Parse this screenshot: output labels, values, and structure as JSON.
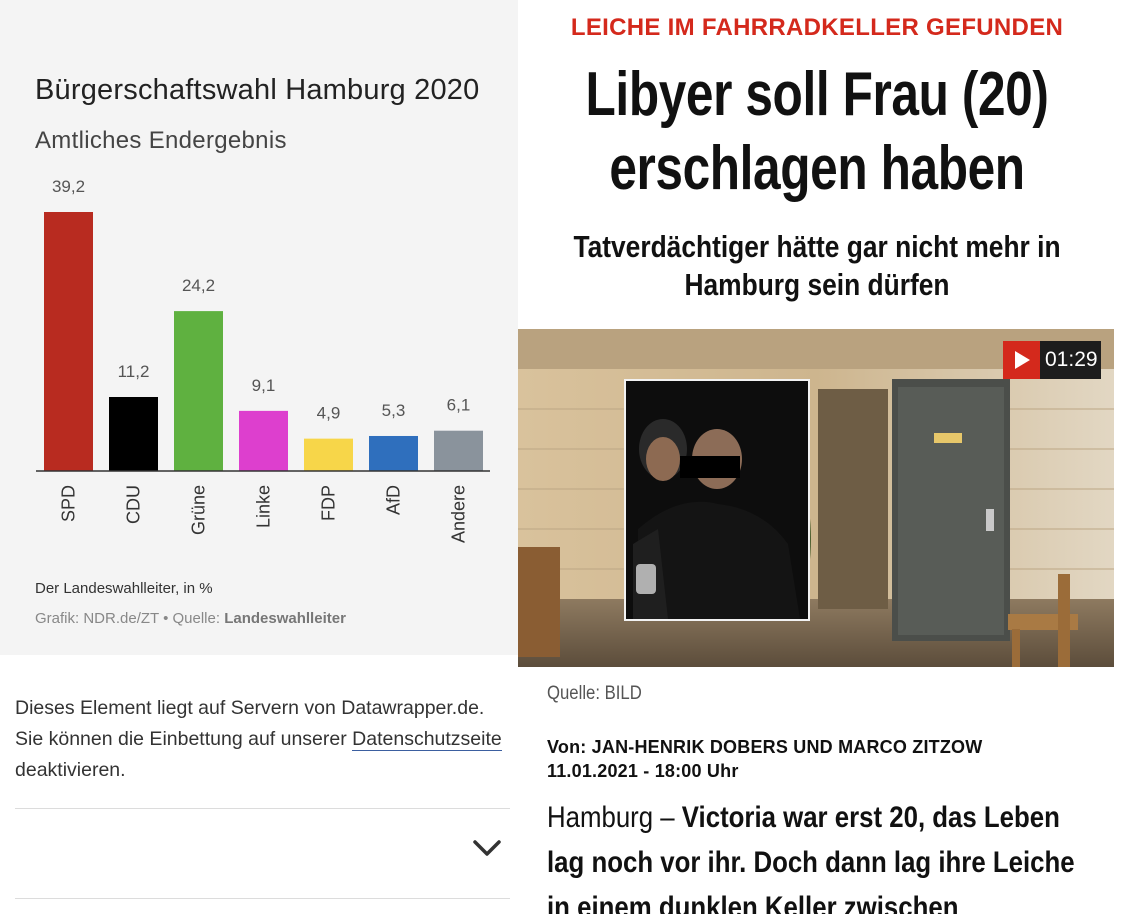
{
  "left": {
    "chart_card": {
      "title": "Bürgerschaftswahl Hamburg 2020",
      "subtitle": "Amtliches Endergebnis",
      "note": "Der Landeswahlleiter, in %",
      "credit_prefix": "Grafik: NDR.de/ZT • Quelle: ",
      "credit_source": "Landeswahlleiter"
    },
    "notice": {
      "text_before_link": "Dieses Element liegt auf Servern von Datawrapper.de. Sie können die Einbettung auf unserer ",
      "link_label": "Datenschutzseite",
      "text_after_link": " deaktivieren."
    },
    "expand_icon": "chevron-down-icon"
  },
  "chart_data": {
    "type": "bar",
    "title": "Bürgerschaftswahl Hamburg 2020",
    "subtitle": "Amtliches Endergebnis",
    "categories": [
      "SPD",
      "CDU",
      "Grüne",
      "Linke",
      "FDP",
      "AfD",
      "Andere"
    ],
    "values": [
      39.2,
      11.2,
      24.2,
      9.1,
      4.9,
      5.3,
      6.1
    ],
    "value_labels": [
      "39,2",
      "11,2",
      "24,2",
      "9,1",
      "4,9",
      "5,3",
      "6,1"
    ],
    "colors": [
      "#b82b20",
      "#000000",
      "#5fb140",
      "#dd3fce",
      "#f7d649",
      "#2f6fbd",
      "#8a939c"
    ],
    "xlabel": "",
    "ylabel": "",
    "ylim": [
      0,
      39.2
    ],
    "grid": false,
    "legend": "none"
  },
  "right": {
    "kicker": "LEICHE IM FAHRRADKELLER GEFUNDEN",
    "headline_line1": "Libyer soll Frau (20)",
    "headline_line2": "erschlagen haben",
    "subhead_line1": "Tatverdächtiger hätte gar nicht mehr in",
    "subhead_line2": "Hamburg sein dürfen",
    "video": {
      "icon": "play-icon",
      "duration": "01:29",
      "accent": "#d4291c"
    },
    "source": "Quelle: BILD",
    "byline": "Von: JAN-HENRIK DOBERS UND MARCO ZITZOW",
    "date": "11.01.2021 - 18:00 Uhr",
    "body": {
      "place": "Hamburg – ",
      "line1_bold": "Victoria war erst 20, das Leben",
      "line2_bold": "lag noch vor ihr. Doch dann lag ihre Leiche",
      "line3_bold": "in einem dunklen Keller zwischen"
    }
  }
}
